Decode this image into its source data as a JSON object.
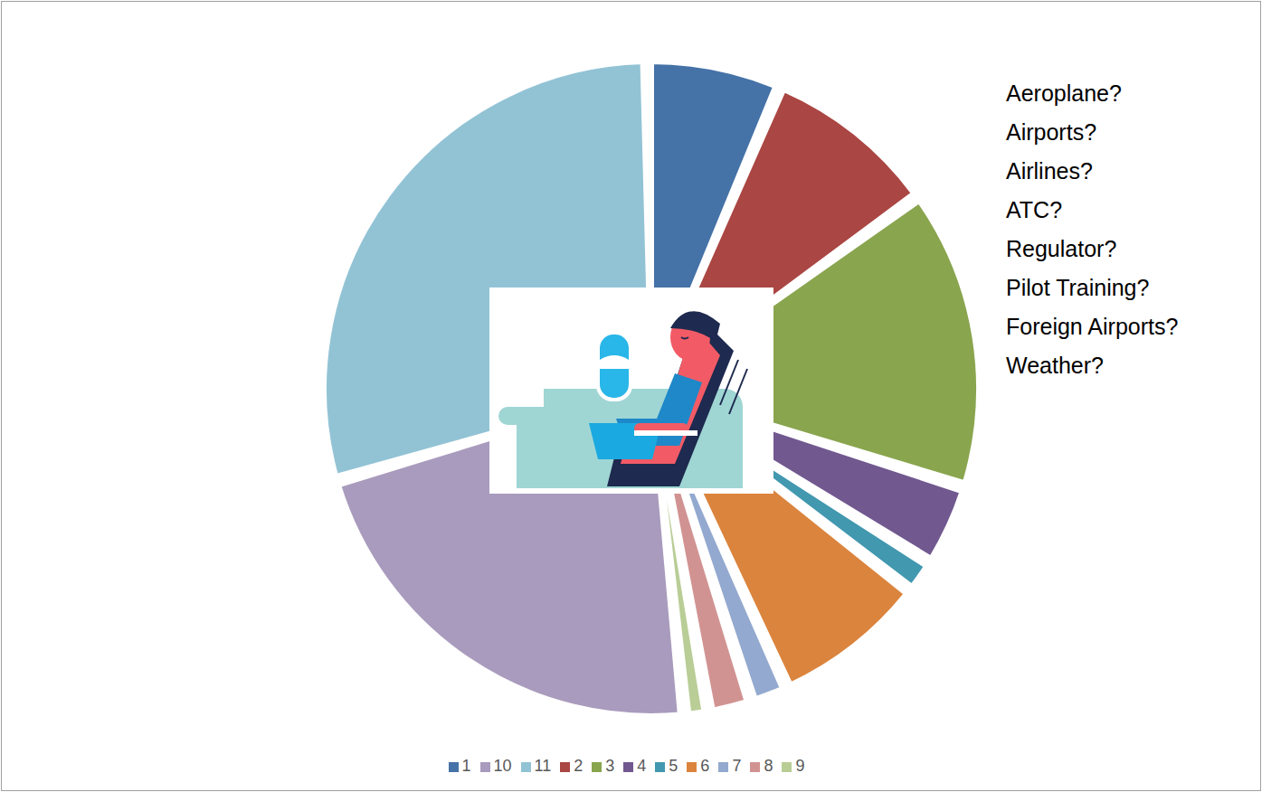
{
  "chart_data": {
    "type": "pie",
    "categories": [
      "1",
      "2",
      "3",
      "4",
      "5",
      "6",
      "7",
      "8",
      "9",
      "10",
      "11"
    ],
    "values": [
      6.5,
      8.6,
      15.1,
      3.8,
      1.3,
      7.6,
      1.5,
      1.8,
      0.8,
      22.7,
      30.3
    ],
    "colors": [
      "#4572a7",
      "#aa4643",
      "#89a54e",
      "#71588f",
      "#4198af",
      "#db843d",
      "#93a9cf",
      "#d19392",
      "#b9cd96",
      "#a99bbd",
      "#92c3d5"
    ],
    "legend": "bottom",
    "annotations": [
      "Aeroplane?",
      "Airports?",
      "Airlines?",
      "ATC?",
      "Regulator?",
      "Pilot Training?",
      "Foreign Airports?",
      "Weather?"
    ]
  }
}
